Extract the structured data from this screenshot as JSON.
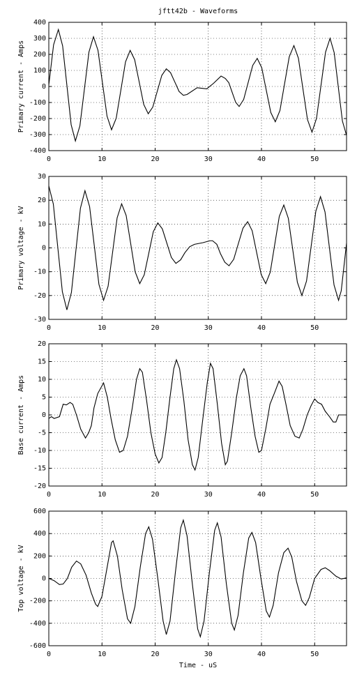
{
  "chart_data": [
    {
      "type": "line",
      "title": "jftt42b - Waveforms",
      "ylabel": "Primary current - Amps",
      "color": "#000000",
      "grid": true,
      "xlim": [
        0,
        56
      ],
      "xticks": [
        0,
        10,
        20,
        30,
        40,
        50
      ],
      "ylim": [
        -400,
        400
      ],
      "yticks": [
        -400,
        -300,
        -200,
        -100,
        0,
        100,
        200,
        300,
        400
      ],
      "x": [
        0,
        0.9,
        1.8,
        2.6,
        3.4,
        4.2,
        5.0,
        5.85,
        6.7,
        7.55,
        8.4,
        9.25,
        10.1,
        10.95,
        11.8,
        12.675,
        13.55,
        14.425,
        15.3,
        16.15,
        17.0,
        17.85,
        18.7,
        19.55,
        20.4,
        21.25,
        22.1,
        22.9,
        23.7,
        24.5,
        25.3,
        26.0,
        27.9,
        29.7,
        31.0,
        32.4,
        33.2,
        33.85,
        34.5,
        35.15,
        35.8,
        36.65,
        37.5,
        38.35,
        39.2,
        40.05,
        40.9,
        41.75,
        42.6,
        43.475,
        44.35,
        45.225,
        46.1,
        46.95,
        47.8,
        48.65,
        49.5,
        50.35,
        51.2,
        52.05,
        52.9,
        53.675,
        54.45,
        55.225,
        56
      ],
      "values": [
        10,
        260,
        355,
        253,
        8,
        -238,
        -340,
        -245,
        -15,
        215,
        310,
        225,
        20,
        -185,
        -270,
        -198,
        -23,
        153,
        225,
        167,
        28,
        -112,
        -170,
        -129,
        -30,
        69,
        110,
        86,
        28,
        -31,
        -55,
        -50,
        -8,
        -15,
        20,
        65,
        50,
        24,
        -38,
        -99,
        -125,
        -81,
        25,
        131,
        175,
        117,
        -23,
        -162,
        -220,
        -150,
        18,
        185,
        255,
        176,
        -15,
        -206,
        -285,
        -199,
        8,
        214,
        300,
        211,
        -3,
        -216,
        -305
      ]
    },
    {
      "type": "line",
      "ylabel": "Primary voltage - kV",
      "color": "#000000",
      "grid": true,
      "xlim": [
        0,
        56
      ],
      "xticks": [
        0,
        10,
        20,
        30,
        40,
        50
      ],
      "ylim": [
        -30,
        30
      ],
      "yticks": [
        -30,
        -20,
        -10,
        0,
        10,
        20,
        30
      ],
      "x": [
        0,
        0.85,
        1.7,
        2.55,
        3.4,
        4.25,
        5.1,
        5.95,
        6.8,
        7.675,
        8.55,
        9.425,
        10.3,
        11.15,
        12.0,
        12.85,
        13.7,
        14.55,
        15.4,
        16.25,
        17.1,
        17.95,
        18.8,
        19.65,
        20.5,
        21.35,
        22.2,
        23.05,
        23.9,
        24.8,
        25.6,
        26.5,
        27.4,
        29.0,
        30.3,
        30.8,
        31.6,
        32.3,
        33.1,
        33.9,
        34.775,
        35.65,
        36.525,
        37.4,
        38.25,
        39.1,
        39.95,
        40.8,
        41.65,
        42.5,
        43.35,
        44.2,
        45.05,
        45.9,
        46.75,
        47.6,
        48.475,
        49.35,
        50.225,
        51.1,
        51.95,
        52.8,
        53.65,
        54.5,
        55.0,
        55.5,
        56
      ],
      "values": [
        26,
        18.4,
        0,
        -18.4,
        -26,
        -18.7,
        -1,
        16.7,
        24,
        17.3,
        1,
        -15.3,
        -22,
        -16.1,
        -1.8,
        12.6,
        18.5,
        13.6,
        1.8,
        -10.1,
        -15,
        -11.3,
        -2.3,
        6.8,
        10.5,
        8,
        2,
        -4,
        -6.5,
        -5,
        -2,
        0.5,
        1.5,
        2.2,
        3,
        3,
        1.5,
        -2.5,
        -6,
        -7.5,
        -4.8,
        1.8,
        8.3,
        11,
        7.2,
        -2,
        -11.2,
        -15,
        -10.2,
        1.5,
        13.2,
        18,
        12.4,
        -1,
        -14.4,
        -20,
        -13.9,
        0.8,
        15.4,
        21.5,
        15.1,
        -0.3,
        -15.6,
        -22,
        -18,
        -8,
        2
      ]
    },
    {
      "type": "line",
      "ylabel": "Base current - Amps",
      "color": "#000000",
      "grid": true,
      "xlim": [
        0,
        56
      ],
      "xticks": [
        0,
        10,
        20,
        30,
        40,
        50
      ],
      "ylim": [
        -20,
        20
      ],
      "yticks": [
        -20,
        -15,
        -10,
        -5,
        0,
        5,
        10,
        15,
        20
      ],
      "x": [
        0,
        0.5,
        1,
        2,
        2.7,
        3.3,
        4,
        4.5,
        5.2,
        6,
        6.9,
        7.5,
        8,
        8.5,
        9.2,
        10.3,
        11,
        11.7,
        12.5,
        13.3,
        14,
        14.8,
        15.7,
        16.5,
        17.1,
        17.6,
        18.4,
        19.2,
        20.0,
        20.7,
        21.3,
        22,
        22.8,
        23.5,
        24.0,
        24.6,
        25.4,
        26.2,
        27,
        27.5,
        28.1,
        28.9,
        29.8,
        30.4,
        30.9,
        31.7,
        32.5,
        33.2,
        33.6,
        34.4,
        35.3,
        36,
        36.7,
        37.2,
        38,
        38.8,
        39.5,
        40,
        40.8,
        41.6,
        42.4,
        43.3,
        43.9,
        44.6,
        45.4,
        46.3,
        47.1,
        47.8,
        48.6,
        49.3,
        50,
        50.6,
        51.3,
        52,
        52.8,
        53.5,
        54,
        54.5,
        55.2,
        56
      ],
      "values": [
        -1,
        -0.5,
        -1,
        -0.5,
        3,
        2.8,
        3.5,
        3,
        0,
        -4,
        -6.5,
        -5,
        -3,
        2,
        6,
        9,
        5,
        -1,
        -7,
        -10.5,
        -10,
        -6,
        2,
        10,
        13,
        12,
        4,
        -5,
        -11,
        -13.5,
        -12,
        -5,
        5,
        13,
        15.5,
        13,
        4,
        -7,
        -14,
        -15.5,
        -12,
        -2,
        9,
        14.5,
        13,
        3,
        -8,
        -14,
        -13,
        -5,
        5,
        11,
        13,
        11,
        2,
        -6,
        -10.5,
        -10,
        -4,
        3,
        6,
        9.5,
        8,
        3,
        -3,
        -6,
        -6.5,
        -4,
        0,
        2.5,
        4.5,
        3.5,
        3,
        1,
        -0.5,
        -2,
        -2,
        0,
        0,
        0
      ]
    },
    {
      "type": "line",
      "ylabel": "Top voltage - kV",
      "xlabel": "Time - uS",
      "color": "#000000",
      "grid": true,
      "xlim": [
        0,
        56
      ],
      "xticks": [
        0,
        10,
        20,
        30,
        40,
        50
      ],
      "ylim": [
        -600,
        600
      ],
      "yticks": [
        -600,
        -400,
        -200,
        0,
        200,
        400,
        600
      ],
      "x": [
        0,
        1,
        2,
        2.7,
        3.5,
        4.3,
        5.2,
        6,
        7,
        8,
        8.8,
        9.2,
        10,
        10.9,
        11.8,
        12.1,
        12.9,
        13.8,
        14.8,
        15.4,
        16.2,
        17.2,
        18.2,
        18.8,
        19.5,
        20.5,
        21.5,
        22.1,
        22.8,
        23.8,
        24.8,
        25.3,
        26,
        27,
        28.0,
        28.5,
        29.2,
        30.2,
        31.2,
        31.7,
        32.4,
        33.4,
        34.4,
        34.9,
        35.6,
        36.6,
        37.6,
        38.2,
        38.9,
        39.9,
        40.9,
        41.5,
        42.2,
        43.2,
        44.2,
        45.0,
        45.7,
        46.6,
        47.6,
        48.3,
        49.0,
        50,
        51.2,
        52,
        52.8,
        54,
        55,
        56
      ],
      "values": [
        0,
        -20,
        -55,
        -50,
        0,
        100,
        155,
        130,
        30,
        -130,
        -230,
        -250,
        -160,
        80,
        320,
        335,
        200,
        -100,
        -360,
        -400,
        -250,
        100,
        400,
        460,
        350,
        0,
        -380,
        -500,
        -380,
        50,
        450,
        520,
        380,
        -50,
        -450,
        -520,
        -380,
        50,
        430,
        495,
        370,
        -50,
        -400,
        -460,
        -330,
        50,
        360,
        410,
        320,
        0,
        -290,
        -345,
        -240,
        50,
        230,
        270,
        190,
        -30,
        -200,
        -240,
        -170,
        0,
        80,
        95,
        70,
        20,
        -5,
        5
      ]
    }
  ]
}
